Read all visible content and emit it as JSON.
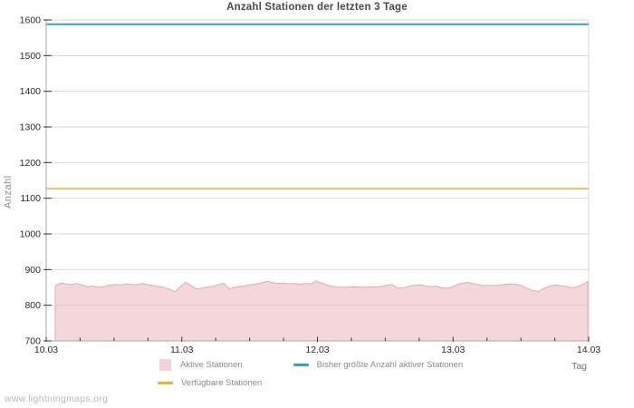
{
  "watermark": "www.lightningmaps.org",
  "chart_data": {
    "type": "area",
    "title": "Anzahl Stationen der letzten 3 Tage",
    "xlabel": "Tag",
    "ylabel": "Anzahl",
    "ylim": [
      700,
      1600
    ],
    "y_ticks": [
      700,
      800,
      900,
      1000,
      1100,
      1200,
      1300,
      1400,
      1500,
      1600
    ],
    "x_tick_labels": [
      "10.03",
      "11.03",
      "12.03",
      "13.03",
      "14.03"
    ],
    "xlim_days": [
      0,
      4
    ],
    "x_minor_ticks_per_interval": 3,
    "grid": "horizontal",
    "legend_position": "bottom",
    "colors": {
      "area_fill": "#e9b6bd",
      "area_edge": "#dfacb4",
      "max_line": "#2ba6c8",
      "available_line": "#f3ae34",
      "grid": "#d8d8d8",
      "axis": "#a8a8a8",
      "tick_label": "#2b2b2b"
    },
    "series": [
      {
        "name": "Aktive Stationen",
        "type": "area",
        "x_start_day": 0.067,
        "x_end_day": 3.993,
        "values": [
          855,
          862,
          860,
          858,
          861,
          856,
          852,
          854,
          850,
          853,
          856,
          858,
          857,
          860,
          859,
          857,
          861,
          858,
          855,
          853,
          850,
          845,
          838,
          852,
          864,
          855,
          846,
          848,
          851,
          853,
          858,
          862,
          846,
          850,
          853,
          855,
          858,
          860,
          863,
          867,
          863,
          861,
          862,
          860,
          861,
          859,
          861,
          860,
          868,
          862,
          857,
          853,
          851,
          850,
          851,
          852,
          851,
          850,
          852,
          851,
          853,
          856,
          858,
          849,
          848,
          853,
          856,
          857,
          855,
          852,
          854,
          849,
          847,
          851,
          858,
          862,
          864,
          860,
          857,
          855,
          856,
          855,
          857,
          859,
          860,
          858,
          854,
          846,
          841,
          839,
          848,
          854,
          857,
          855,
          853,
          849,
          851,
          858,
          866
        ]
      },
      {
        "name": "Bisher größte Anzahl aktiver Stationen",
        "type": "hline",
        "value": 1588
      },
      {
        "name": "Verfügbare Stationen",
        "type": "hline",
        "value": 1127
      }
    ]
  }
}
